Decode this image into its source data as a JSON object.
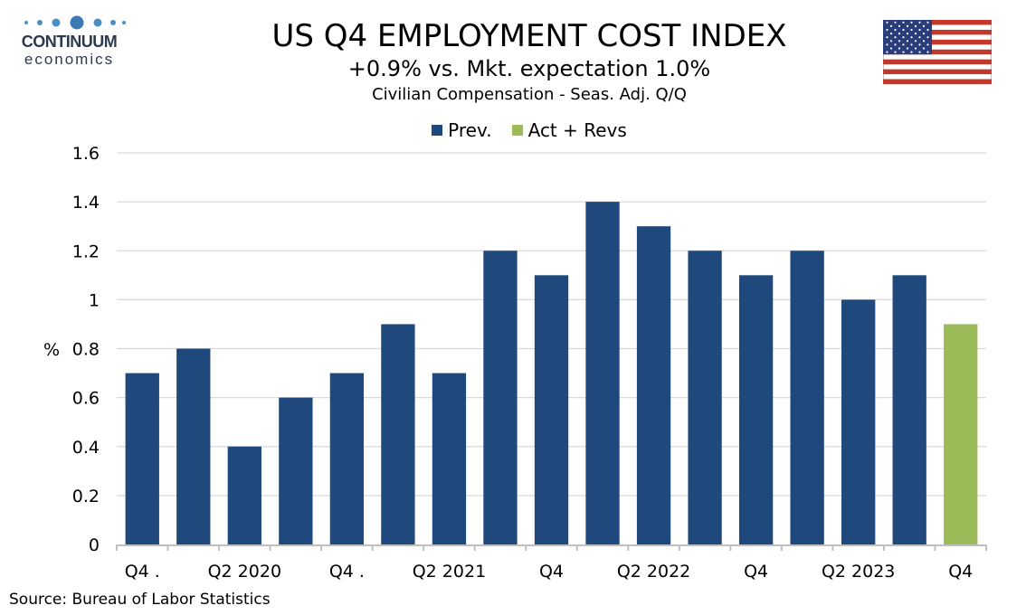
{
  "logo": {
    "line1": "CONTINUUM",
    "line2": "economics"
  },
  "header": {
    "title": "US Q4 EMPLOYMENT COST INDEX",
    "subtitle": "+0.9% vs. Mkt. expectation 1.0%",
    "subtitle2": "Civilian Compensation - Seas. Adj. Q/Q"
  },
  "flag_icon": "us-flag-icon",
  "source": "Source: Bureau of Labor Statistics",
  "colors": {
    "prev": "#1f497d",
    "actual": "#9bbb59",
    "grid": "#d9d9d9",
    "axis": "#bfbfbf"
  },
  "chart_data": {
    "type": "bar",
    "ylabel": "%",
    "ylim": [
      0,
      1.6
    ],
    "yticks": [
      "0",
      "0.2",
      "0.4",
      "0.6",
      "0.8",
      "1",
      "1.2",
      "1.4",
      "1.6"
    ],
    "grid": true,
    "legend_position": "top-center",
    "series": [
      {
        "name": "Prev.",
        "color": "#1f497d"
      },
      {
        "name": "Act + Revs",
        "color": "#9bbb59"
      }
    ],
    "categories": [
      "Q4 .",
      "",
      "Q2 2020",
      "",
      "Q4 .",
      "",
      "Q2 2021",
      "",
      "Q4",
      "",
      "Q2 2022",
      "",
      "Q4",
      "",
      "Q2 2023",
      "",
      "Q4"
    ],
    "values": [
      0.7,
      0.8,
      0.4,
      0.6,
      0.7,
      0.9,
      0.7,
      1.2,
      1.1,
      1.4,
      1.3,
      1.2,
      1.1,
      1.2,
      1.0,
      1.1,
      0.9
    ],
    "bar_series": [
      "Prev.",
      "Prev.",
      "Prev.",
      "Prev.",
      "Prev.",
      "Prev.",
      "Prev.",
      "Prev.",
      "Prev.",
      "Prev.",
      "Prev.",
      "Prev.",
      "Prev.",
      "Prev.",
      "Prev.",
      "Prev.",
      "Act + Revs"
    ]
  }
}
